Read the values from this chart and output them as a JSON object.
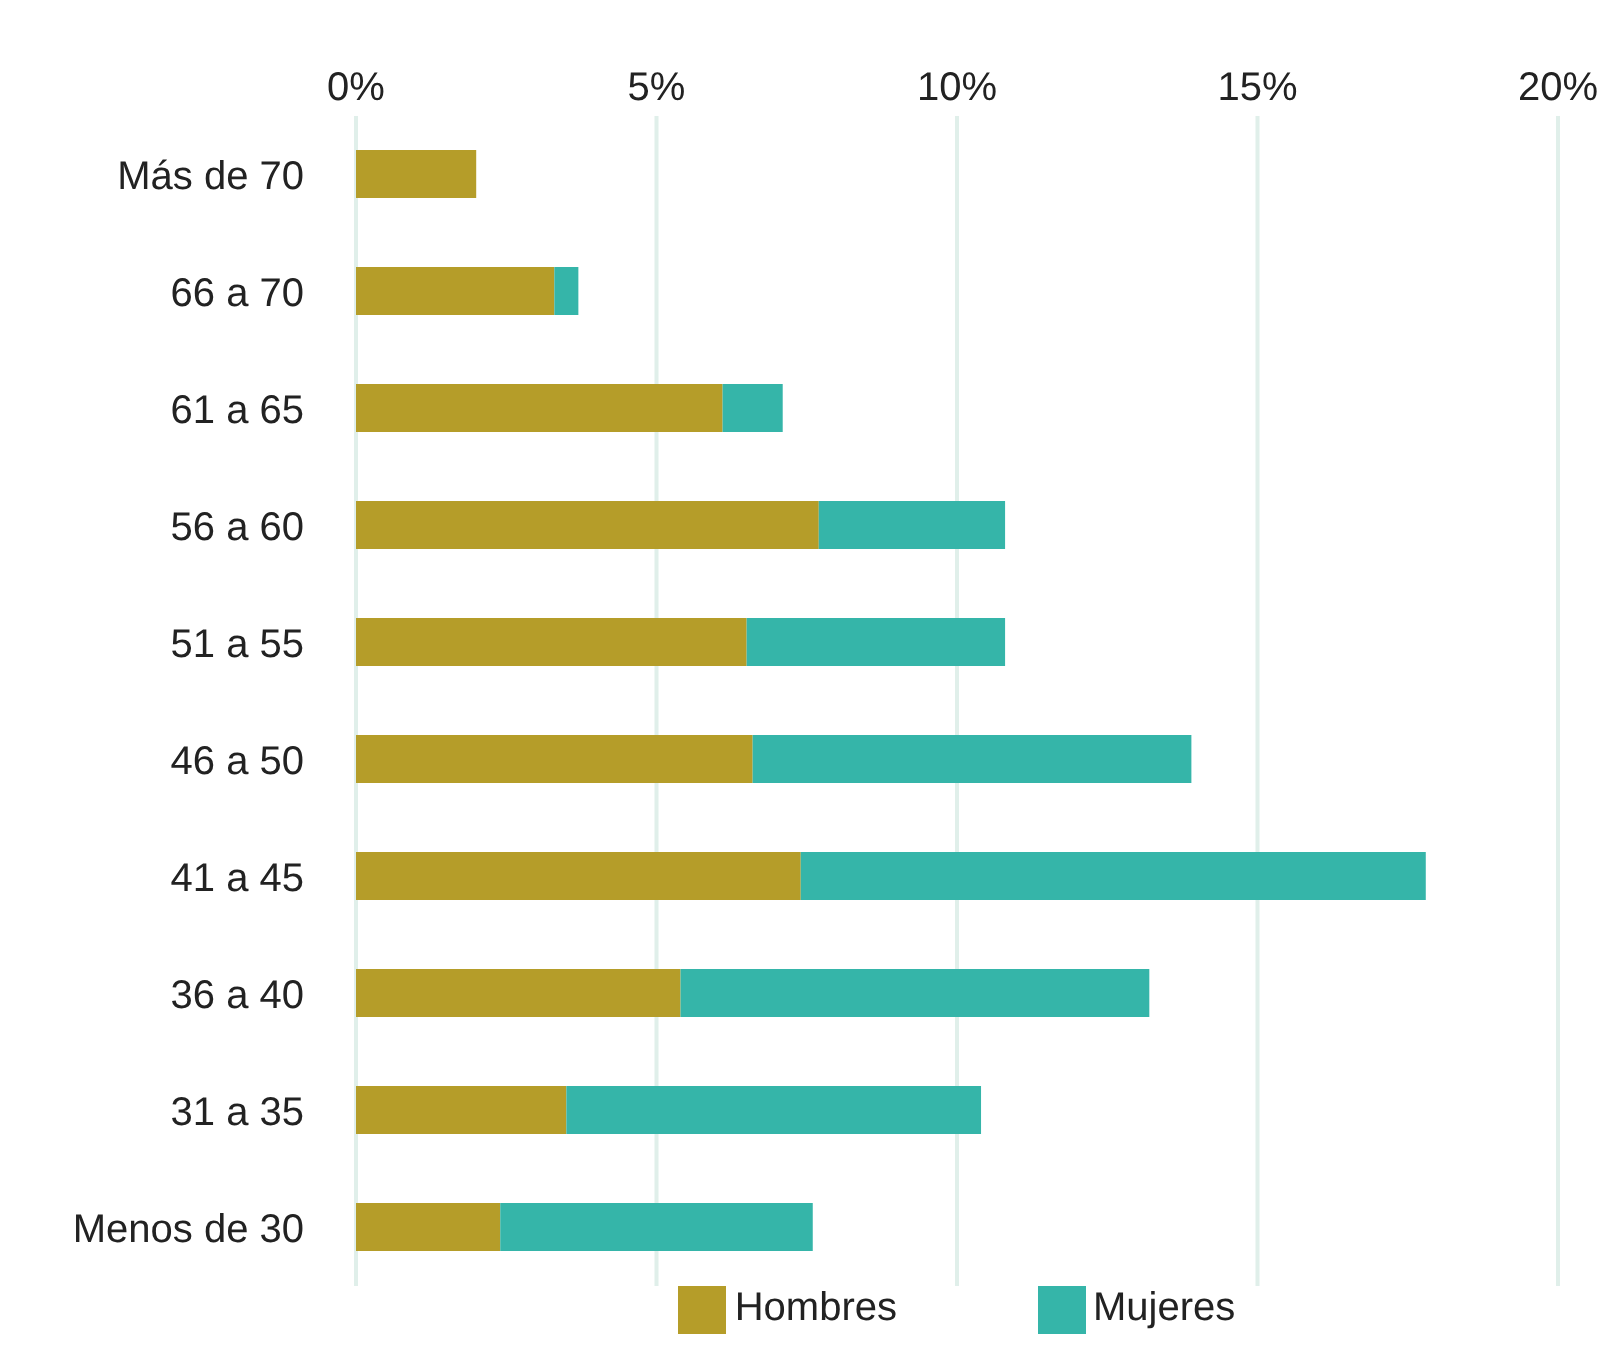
{
  "chart_data": {
    "type": "bar",
    "orientation": "horizontal",
    "stacked": true,
    "categories": [
      "Más de 70",
      "66 a 70",
      "61 a 65",
      "56 a 60",
      "51 a 55",
      "46 a 50",
      "41 a 45",
      "36 a 40",
      "31 a 35",
      "Menos de 30"
    ],
    "series": [
      {
        "name": "Hombres",
        "color": "#b59d29",
        "values": [
          2.0,
          3.3,
          6.1,
          7.7,
          6.5,
          6.6,
          7.4,
          5.4,
          3.5,
          2.4
        ]
      },
      {
        "name": "Mujeres",
        "color": "#35b5a9",
        "values": [
          0,
          0.4,
          1.0,
          3.1,
          4.3,
          7.3,
          10.4,
          7.8,
          6.9,
          5.2
        ]
      }
    ],
    "xlim": [
      0,
      20
    ],
    "xticks": [
      {
        "value": 0,
        "label": "0%"
      },
      {
        "value": 5,
        "label": "5%"
      },
      {
        "value": 10,
        "label": "10%"
      },
      {
        "value": 15,
        "label": "15%"
      },
      {
        "value": 20,
        "label": "20%"
      }
    ],
    "grid": "x",
    "legend": "bottom"
  }
}
